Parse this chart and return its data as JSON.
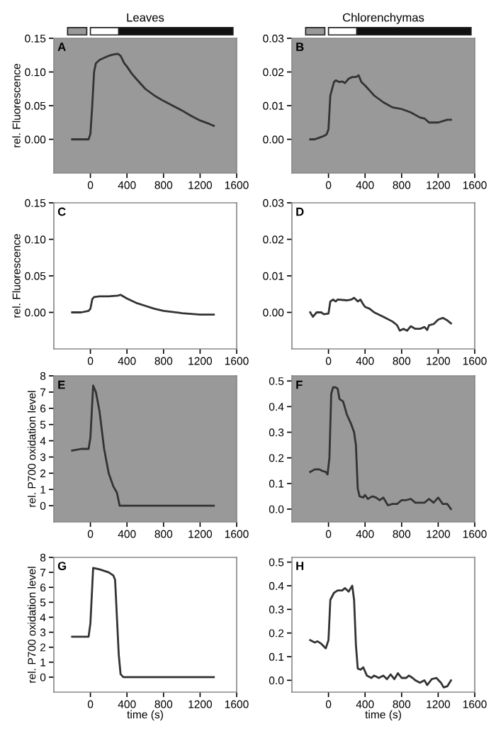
{
  "chart_data": [
    {
      "type": "line",
      "title": "Leaves",
      "ylabel": "rel. Fluorescence",
      "annotations": [
        "A"
      ],
      "bands": [
        {
          "axis": "y",
          "from": -0.05,
          "to": 0.15,
          "color": "#999999"
        }
      ],
      "xlim": [
        -400,
        1600
      ],
      "xticks": [
        0,
        400,
        800,
        1200,
        1600
      ],
      "ylim": [
        -0.05,
        0.15
      ],
      "yticks": [
        {
          "value": 0,
          "label": "0.00"
        },
        {
          "value": 0.05,
          "label": "0.05"
        },
        {
          "value": 0.1,
          "label": "0.10"
        },
        {
          "value": 0.15,
          "label": "0.15"
        }
      ],
      "series": [
        {
          "color": "#333333",
          "x": [
            -200,
            -100,
            -20,
            0,
            20,
            40,
            60,
            100,
            150,
            200,
            250,
            300,
            330,
            370,
            400,
            450,
            500,
            600,
            700,
            800,
            900,
            1000,
            1100,
            1200,
            1300,
            1350
          ],
          "values": [
            0,
            0,
            0,
            0.008,
            0.05,
            0.1,
            0.113,
            0.118,
            0.121,
            0.124,
            0.126,
            0.127,
            0.124,
            0.113,
            0.108,
            0.098,
            0.09,
            0.075,
            0.065,
            0.057,
            0.05,
            0.043,
            0.035,
            0.028,
            0.023,
            0.02
          ]
        }
      ]
    },
    {
      "type": "line",
      "title": "Chlorenchymas",
      "annotations": [
        "B"
      ],
      "bands": [
        {
          "axis": "y",
          "from": -0.01,
          "to": 0.03,
          "color": "#999999"
        }
      ],
      "xlim": [
        -400,
        1600
      ],
      "xticks": [
        0,
        400,
        800,
        1200,
        1600
      ],
      "ylim": [
        -0.01,
        0.03
      ],
      "yticks": [
        {
          "value": 0,
          "label": "0.00"
        },
        {
          "value": 0.01,
          "label": "0.01"
        },
        {
          "value": 0.02,
          "label": "0.02"
        },
        {
          "value": 0.03,
          "label": "0.03"
        }
      ],
      "series": [
        {
          "color": "#333333",
          "x": [
            -200,
            -150,
            -100,
            -50,
            -20,
            0,
            20,
            40,
            60,
            80,
            120,
            150,
            180,
            220,
            260,
            300,
            330,
            360,
            400,
            450,
            500,
            600,
            700,
            800,
            900,
            1000,
            1050,
            1100,
            1200,
            1300,
            1340
          ],
          "values": [
            0,
            0,
            0.0005,
            0.001,
            0.0015,
            0.003,
            0.013,
            0.015,
            0.017,
            0.0175,
            0.017,
            0.0172,
            0.0167,
            0.018,
            0.0185,
            0.0185,
            0.019,
            0.017,
            0.016,
            0.0145,
            0.013,
            0.011,
            0.0095,
            0.009,
            0.008,
            0.0065,
            0.0062,
            0.005,
            0.005,
            0.0058,
            0.0058
          ]
        }
      ]
    },
    {
      "type": "line",
      "ylabel": "rel. Fluorescence",
      "annotations": [
        "C"
      ],
      "xlim": [
        -400,
        1600
      ],
      "xticks": [
        0,
        400,
        800,
        1200,
        1600
      ],
      "ylim": [
        -0.05,
        0.15
      ],
      "yticks": [
        {
          "value": 0,
          "label": "0.00"
        },
        {
          "value": 0.05,
          "label": "0.05"
        },
        {
          "value": 0.1,
          "label": "0.10"
        },
        {
          "value": 0.15,
          "label": "0.15"
        }
      ],
      "series": [
        {
          "color": "#333333",
          "x": [
            -200,
            -100,
            -20,
            0,
            20,
            40,
            100,
            200,
            300,
            330,
            400,
            500,
            600,
            700,
            800,
            1000,
            1200,
            1350
          ],
          "values": [
            0,
            0,
            0.002,
            0.005,
            0.018,
            0.021,
            0.022,
            0.022,
            0.023,
            0.024,
            0.019,
            0.013,
            0.009,
            0.005,
            0.002,
            -0.001,
            -0.003,
            -0.003
          ]
        }
      ]
    },
    {
      "type": "line",
      "annotations": [
        "D"
      ],
      "xlim": [
        -400,
        1600
      ],
      "xticks": [
        0,
        400,
        800,
        1200,
        1600
      ],
      "ylim": [
        -0.01,
        0.03
      ],
      "yticks": [
        {
          "value": 0,
          "label": "0.00"
        },
        {
          "value": 0.01,
          "label": "0.01"
        },
        {
          "value": 0.02,
          "label": "0.02"
        },
        {
          "value": 0.03,
          "label": "0.03"
        }
      ],
      "series": [
        {
          "color": "#333333",
          "x": [
            -200,
            -170,
            -130,
            -80,
            -50,
            0,
            20,
            50,
            80,
            100,
            200,
            250,
            280,
            320,
            350,
            380,
            400,
            450,
            500,
            600,
            700,
            750,
            780,
            820,
            860,
            900,
            950,
            1000,
            1050,
            1080,
            1100,
            1150,
            1200,
            1250,
            1300,
            1340
          ],
          "values": [
            0,
            -0.0012,
            0,
            0,
            -0.0005,
            -0.0003,
            0.003,
            0.0035,
            0.003,
            0.0035,
            0.0033,
            0.0035,
            0.004,
            0.003,
            0.0035,
            0.0022,
            0.0015,
            0.001,
            0,
            -0.0012,
            -0.0025,
            -0.0035,
            -0.005,
            -0.0045,
            -0.005,
            -0.0038,
            -0.0045,
            -0.0045,
            -0.004,
            -0.0048,
            -0.0035,
            -0.0032,
            -0.002,
            -0.0015,
            -0.0022,
            -0.003
          ]
        }
      ]
    },
    {
      "type": "line",
      "ylabel": "rel. P700 oxidation level",
      "annotations": [
        "E"
      ],
      "bands": [
        {
          "axis": "y",
          "from": -1,
          "to": 8,
          "color": "#999999"
        }
      ],
      "xlim": [
        -400,
        1600
      ],
      "xticks": [
        0,
        400,
        800,
        1200,
        1600
      ],
      "ylim": [
        -1,
        8
      ],
      "yticks": [
        0,
        1,
        2,
        3,
        4,
        5,
        6,
        7,
        8
      ],
      "series": [
        {
          "color": "#333333",
          "x": [
            -200,
            -100,
            -20,
            0,
            30,
            60,
            100,
            150,
            200,
            250,
            290,
            320,
            400,
            600,
            800,
            1000,
            1200,
            1350
          ],
          "values": [
            3.4,
            3.5,
            3.5,
            4.2,
            7.4,
            7.0,
            5.8,
            3.5,
            2.0,
            1.2,
            0.8,
            0,
            0,
            0,
            0,
            0,
            0,
            0
          ]
        }
      ]
    },
    {
      "type": "line",
      "annotations": [
        "F"
      ],
      "bands": [
        {
          "axis": "y",
          "from": -0.05,
          "to": 0.52,
          "color": "#999999"
        }
      ],
      "xlim": [
        -400,
        1600
      ],
      "xticks": [
        0,
        400,
        800,
        1200,
        1600
      ],
      "ylim": [
        -0.05,
        0.52
      ],
      "yticks": [
        {
          "value": 0,
          "label": "0.0"
        },
        {
          "value": 0.1,
          "label": "0.1"
        },
        {
          "value": 0.2,
          "label": "0.2"
        },
        {
          "value": 0.3,
          "label": "0.3"
        },
        {
          "value": 0.4,
          "label": "0.4"
        },
        {
          "value": 0.5,
          "label": "0.5"
        }
      ],
      "series": [
        {
          "color": "#333333",
          "x": [
            -200,
            -150,
            -100,
            -60,
            -30,
            -10,
            10,
            30,
            50,
            80,
            100,
            120,
            160,
            200,
            250,
            280,
            300,
            320,
            340,
            380,
            400,
            430,
            480,
            520,
            560,
            600,
            650,
            700,
            750,
            800,
            850,
            900,
            950,
            1000,
            1050,
            1100,
            1150,
            1200,
            1250,
            1300,
            1340
          ],
          "values": [
            0.145,
            0.155,
            0.155,
            0.148,
            0.145,
            0.135,
            0.2,
            0.45,
            0.475,
            0.475,
            0.47,
            0.43,
            0.42,
            0.37,
            0.33,
            0.3,
            0.25,
            0.08,
            0.05,
            0.045,
            0.055,
            0.04,
            0.05,
            0.045,
            0.035,
            0.045,
            0.015,
            0.02,
            0.02,
            0.035,
            0.035,
            0.04,
            0.025,
            0.025,
            0.025,
            0.04,
            0.025,
            0.045,
            0.02,
            0.02,
            0.0
          ]
        }
      ]
    },
    {
      "type": "line",
      "ylabel": "rel. P700 oxidation level",
      "xlabel": "time (s)",
      "annotations": [
        "G"
      ],
      "xlim": [
        -400,
        1600
      ],
      "xticks": [
        0,
        400,
        800,
        1200,
        1600
      ],
      "ylim": [
        -1,
        8
      ],
      "yticks": [
        0,
        1,
        2,
        3,
        4,
        5,
        6,
        7,
        8
      ],
      "series": [
        {
          "color": "#333333",
          "x": [
            -200,
            -100,
            -20,
            0,
            30,
            100,
            200,
            250,
            270,
            290,
            310,
            330,
            360,
            600,
            800,
            1000,
            1200,
            1350
          ],
          "values": [
            2.7,
            2.7,
            2.7,
            3.6,
            7.3,
            7.2,
            7.0,
            6.8,
            6.5,
            4.0,
            1.5,
            0.2,
            0,
            0,
            0,
            0,
            0,
            0
          ]
        }
      ]
    },
    {
      "type": "line",
      "xlabel": "time (s)",
      "annotations": [
        "H"
      ],
      "xlim": [
        -400,
        1600
      ],
      "xticks": [
        0,
        400,
        800,
        1200,
        1600
      ],
      "ylim": [
        -0.05,
        0.52
      ],
      "yticks": [
        {
          "value": 0,
          "label": "0.0"
        },
        {
          "value": 0.1,
          "label": "0.1"
        },
        {
          "value": 0.2,
          "label": "0.2"
        },
        {
          "value": 0.3,
          "label": "0.3"
        },
        {
          "value": 0.4,
          "label": "0.4"
        },
        {
          "value": 0.5,
          "label": "0.5"
        }
      ],
      "series": [
        {
          "color": "#333333",
          "x": [
            -200,
            -150,
            -120,
            -80,
            -30,
            0,
            20,
            60,
            100,
            150,
            180,
            220,
            260,
            280,
            300,
            320,
            350,
            380,
            420,
            470,
            500,
            550,
            600,
            640,
            680,
            720,
            760,
            800,
            850,
            880,
            920,
            950,
            1000,
            1050,
            1080,
            1130,
            1180,
            1230,
            1260,
            1300,
            1340
          ],
          "values": [
            0.17,
            0.16,
            0.165,
            0.155,
            0.135,
            0.17,
            0.34,
            0.37,
            0.38,
            0.38,
            0.39,
            0.375,
            0.4,
            0.34,
            0.15,
            0.05,
            0.045,
            0.055,
            0.02,
            0.01,
            0.02,
            0.01,
            0.02,
            0.005,
            0.025,
            0.005,
            0.03,
            0.01,
            0.01,
            0.02,
            0.01,
            0.0,
            -0.01,
            0.0,
            -0.02,
            0.005,
            0.01,
            -0.01,
            -0.03,
            -0.025,
            0.0
          ]
        }
      ]
    }
  ]
}
